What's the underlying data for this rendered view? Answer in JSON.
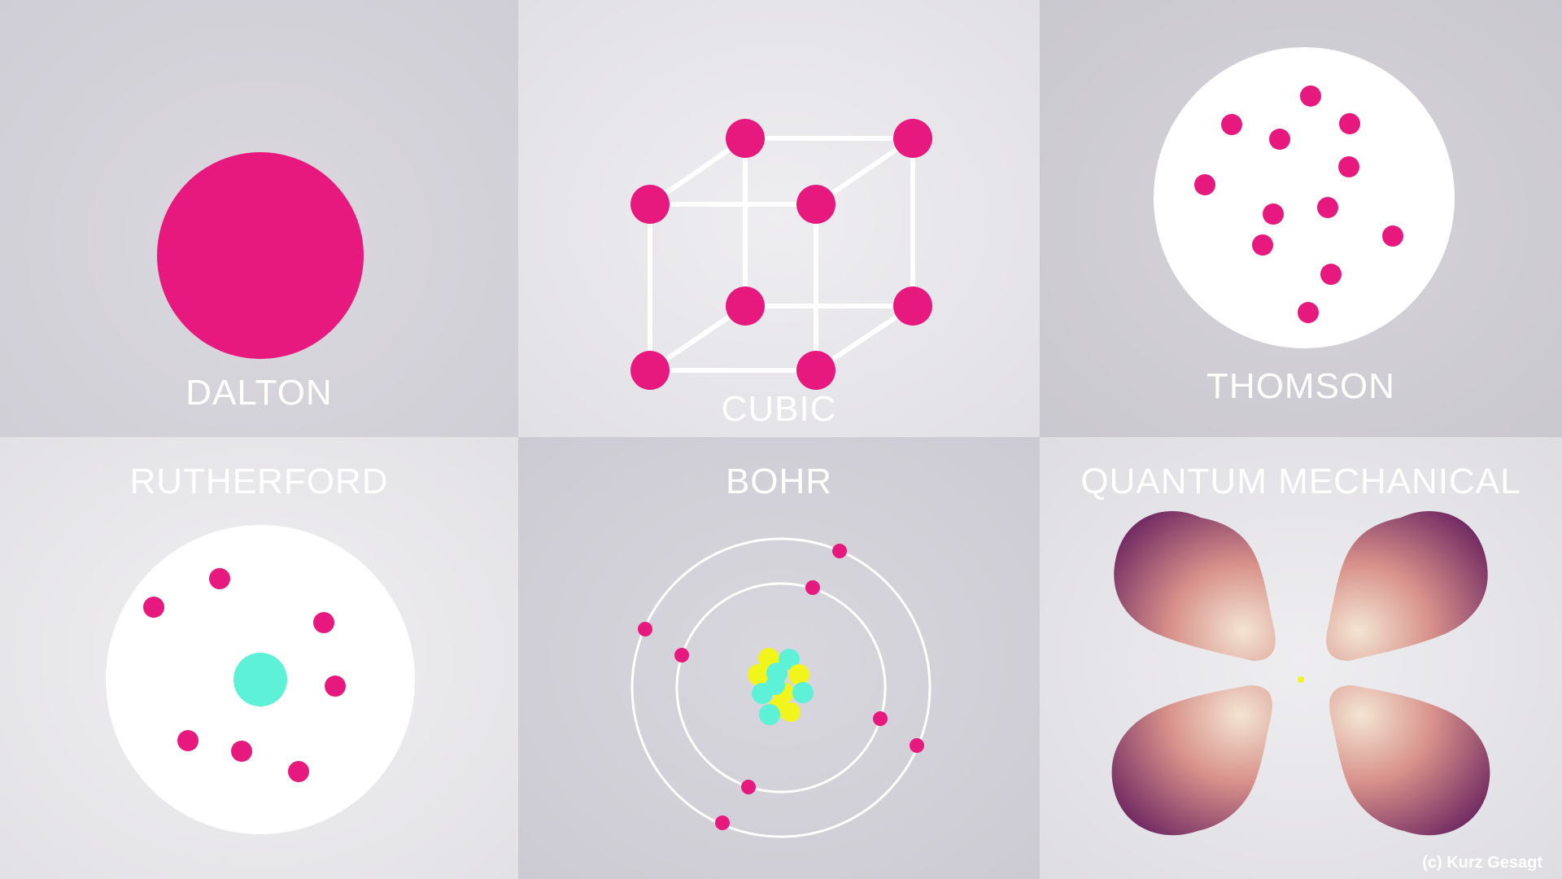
{
  "models": {
    "dalton": {
      "label": "DALTON"
    },
    "cubic": {
      "label": "CUBIC"
    },
    "thomson": {
      "label": "THOMSON"
    },
    "rutherford": {
      "label": "RUTHERFORD"
    },
    "bohr": {
      "label": "BOHR"
    },
    "quantum": {
      "label": "QUANTUM MECHANICAL"
    }
  },
  "colors": {
    "electron": "#e8197e",
    "nucleus_teal": "#5df1d7",
    "proton_yellow": "#f2f51c",
    "white": "#ffffff",
    "orbital_dark": "#6c2660",
    "orbital_light": "#efdcc8"
  },
  "credit": "(c) Kurz Gesagt"
}
